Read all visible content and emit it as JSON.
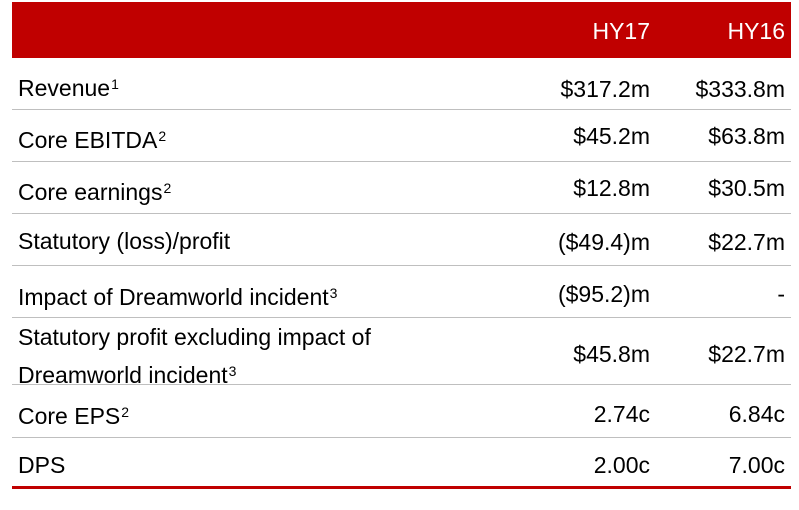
{
  "header": {
    "col1": "HY17",
    "col2": "HY16"
  },
  "rows": [
    {
      "label": "Revenue",
      "sup": "1",
      "v1": "$317.2m",
      "v2": "$333.8m"
    },
    {
      "label": "Core EBITDA",
      "sup": "2",
      "v1": "$45.2m",
      "v2": "$63.8m"
    },
    {
      "label": "Core earnings",
      "sup": "2",
      "v1": "$12.8m",
      "v2": "$30.5m"
    },
    {
      "label": "Statutory (loss)/profit",
      "sup": "",
      "v1": "($49.4)m",
      "v2": "$22.7m"
    },
    {
      "label": "Impact of Dreamworld incident",
      "sup": "3",
      "v1": "($95.2)m",
      "v2": "-"
    },
    {
      "label_line1": "Statutory profit excluding impact of",
      "label_line2": "Dreamworld incident",
      "sup": "3",
      "v1": "$45.8m",
      "v2": "$22.7m"
    },
    {
      "label": "Core EPS",
      "sup": "2",
      "v1": "2.74c",
      "v2": "6.84c"
    },
    {
      "label": "DPS",
      "sup": "",
      "v1": "2.00c",
      "v2": "7.00c"
    }
  ],
  "colors": {
    "accent": "#c00000",
    "rule": "#bfbfbf"
  }
}
